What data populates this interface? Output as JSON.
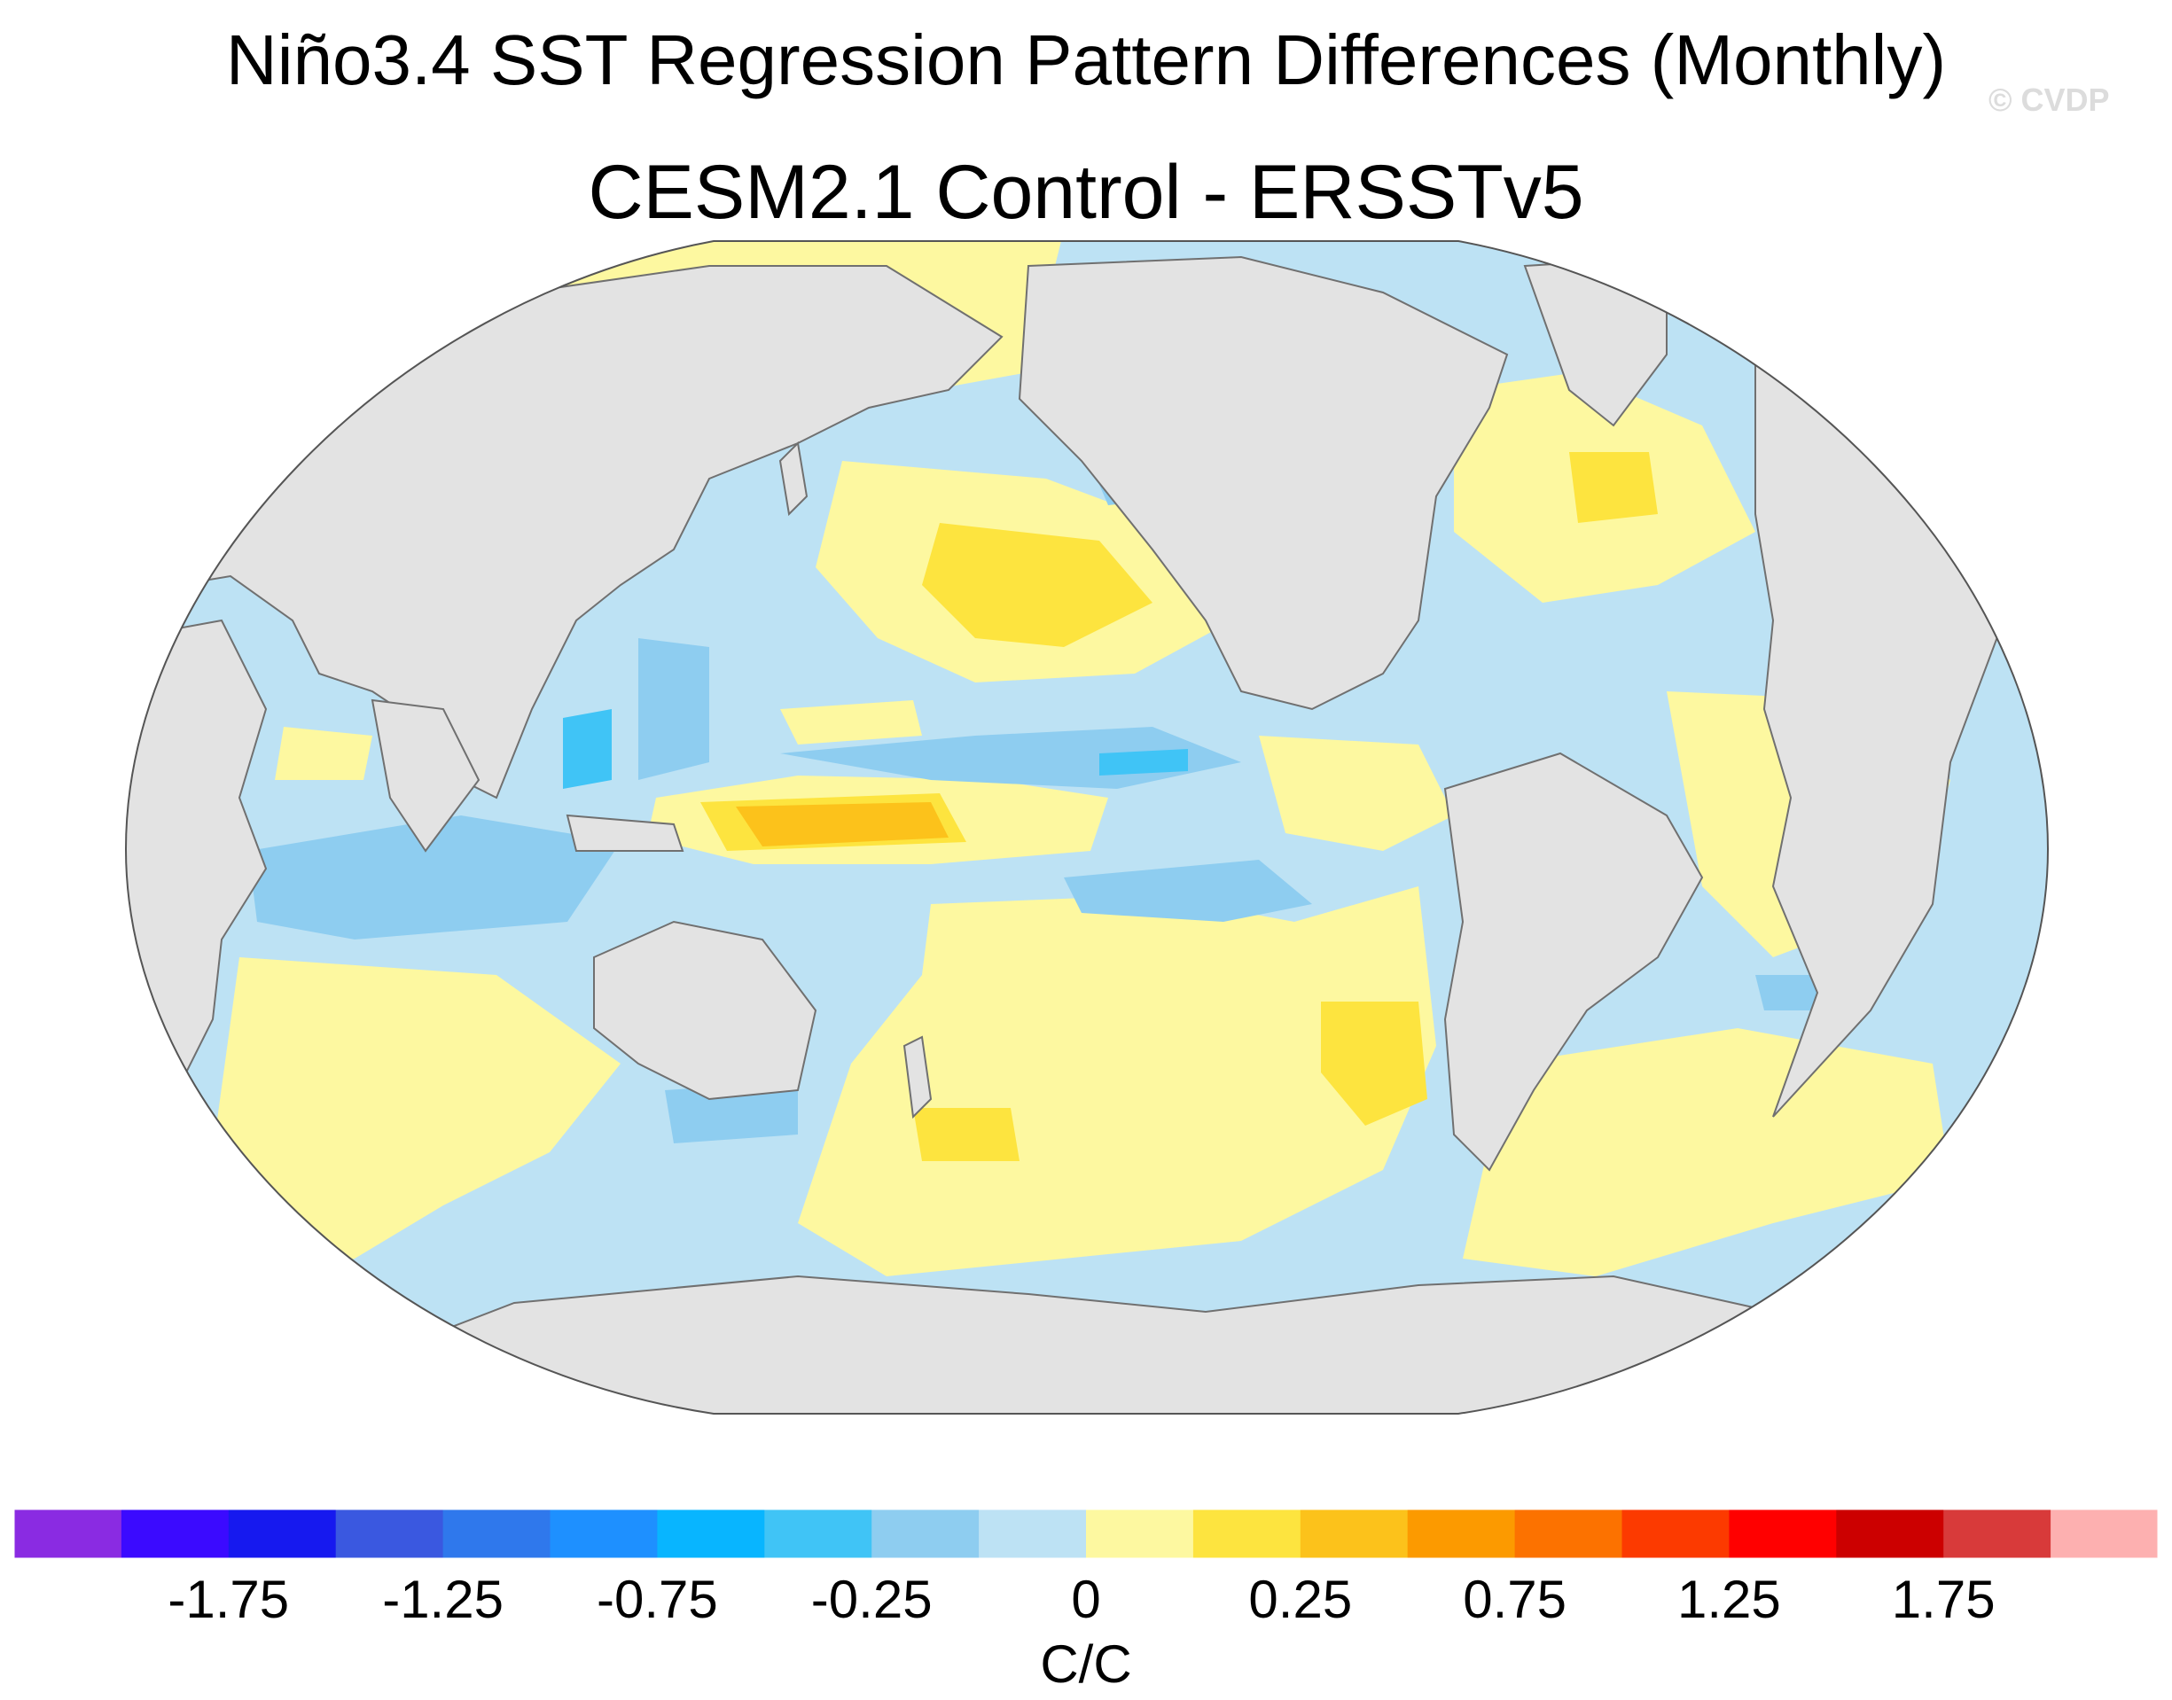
{
  "title": "Niño3.4 SST Regression Pattern Differences (Monthly)",
  "subtitle": "CESM2.1 Control - ERSSTv5",
  "watermark": "© CVDP",
  "colorbar": {
    "units": "C/C",
    "colors": [
      "#8a2be2",
      "#3b0aff",
      "#1619ef",
      "#3a58e0",
      "#2f78ec",
      "#1e90ff",
      "#08b5ff",
      "#40c4f6",
      "#8ecdf0",
      "#bde2f4",
      "#fdf8a0",
      "#fde43f",
      "#fcc21b",
      "#fc9a00",
      "#fc7200",
      "#fc3a00",
      "#ff0000",
      "#cc0000",
      "#d83a3a",
      "#fdb0b0"
    ],
    "ticks": [
      {
        "label": "-1.75",
        "boundary": 1
      },
      {
        "label": "-1.25",
        "boundary": 3
      },
      {
        "label": "-0.75",
        "boundary": 5
      },
      {
        "label": "-0.25",
        "boundary": 7
      },
      {
        "label": "0",
        "boundary": 9
      },
      {
        "label": "0.25",
        "boundary": 11
      },
      {
        "label": "0.75",
        "boundary": 13
      },
      {
        "label": "1.25",
        "boundary": 15
      },
      {
        "label": "1.75",
        "boundary": 17
      }
    ]
  },
  "map": {
    "projection": "robinson",
    "land_color": "#e3e3e3",
    "ocean_base_color": "#bde2f4"
  }
}
